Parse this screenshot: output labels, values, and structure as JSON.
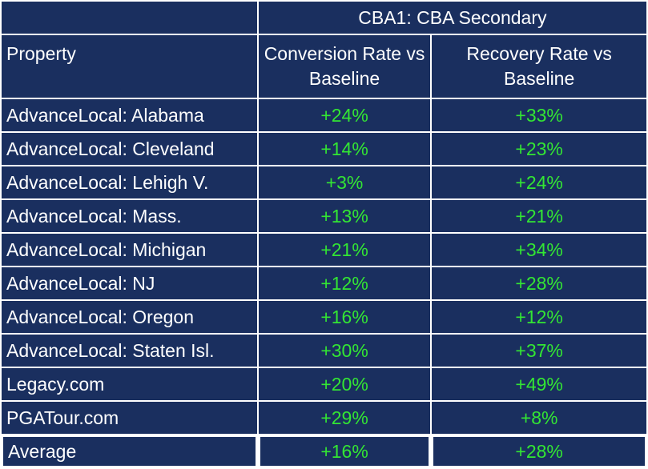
{
  "table": {
    "group_header": "CBA1: CBA Secondary",
    "columns": [
      "Property",
      "Conversion Rate vs Baseline",
      "Recovery Rate vs Baseline"
    ],
    "rows": [
      {
        "property": "AdvanceLocal: Alabama",
        "conversion": "+24%",
        "recovery": "+33%"
      },
      {
        "property": "AdvanceLocal: Cleveland",
        "conversion": "+14%",
        "recovery": "+23%"
      },
      {
        "property": "AdvanceLocal: Lehigh V.",
        "conversion": "+3%",
        "recovery": "+24%"
      },
      {
        "property": "AdvanceLocal: Mass.",
        "conversion": "+13%",
        "recovery": "+21%"
      },
      {
        "property": "AdvanceLocal: Michigan",
        "conversion": "+21%",
        "recovery": "+34%"
      },
      {
        "property": "AdvanceLocal: NJ",
        "conversion": "+12%",
        "recovery": "+28%"
      },
      {
        "property": "AdvanceLocal: Oregon",
        "conversion": "+16%",
        "recovery": "+12%"
      },
      {
        "property": "AdvanceLocal: Staten Isl.",
        "conversion": "+30%",
        "recovery": "+37%"
      },
      {
        "property": "Legacy.com",
        "conversion": "+20%",
        "recovery": "+49%"
      },
      {
        "property": "PGATour.com",
        "conversion": "+29%",
        "recovery": "+8%"
      }
    ],
    "average": {
      "property": "Average",
      "conversion": "+16%",
      "recovery": "+28%"
    }
  },
  "colors": {
    "cell_background": "#1a2f5f",
    "text": "#ffffff",
    "positive_value": "#33e633"
  }
}
